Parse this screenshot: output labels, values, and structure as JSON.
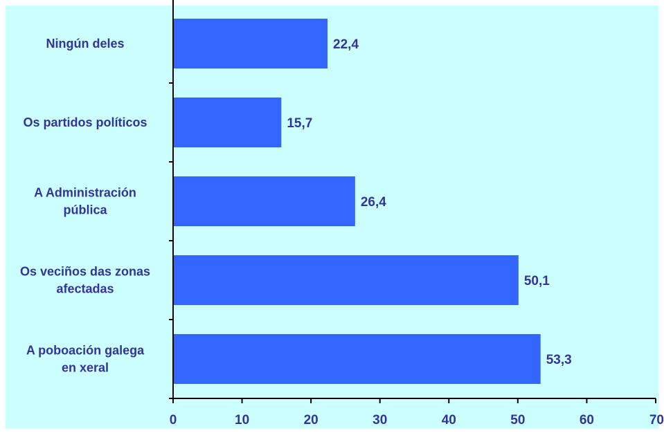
{
  "colors": {
    "background": "#ccffff",
    "bar": "#3366ff",
    "text": "#333399",
    "axis": "#000000"
  },
  "chart_data": {
    "type": "bar",
    "orientation": "horizontal",
    "categories": [
      [
        "Ningún deles"
      ],
      [
        "Os partidos políticos"
      ],
      [
        "A Administración",
        "pública"
      ],
      [
        "Os veciños das zonas",
        "afectadas"
      ],
      [
        "A poboación galega",
        "en xeral"
      ]
    ],
    "values": [
      22.4,
      15.7,
      26.4,
      50.1,
      53.3
    ],
    "value_labels": [
      "22,4",
      "15,7",
      "26,4",
      "50,1",
      "53,3"
    ],
    "xlim": [
      0,
      70
    ],
    "xticks": [
      0,
      10,
      20,
      30,
      40,
      50,
      60,
      70
    ],
    "grid": false,
    "legend": "none"
  }
}
